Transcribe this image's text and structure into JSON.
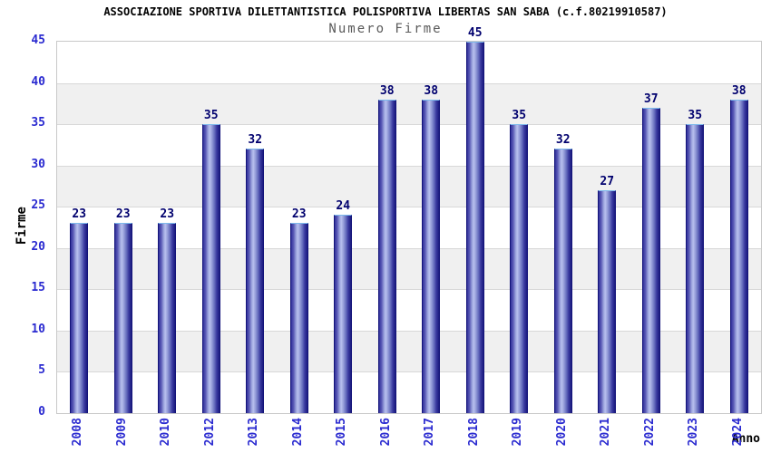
{
  "chart_data": {
    "type": "bar",
    "title": "ASSOCIAZIONE SPORTIVA DILETTANTISTICA POLISPORTIVA LIBERTAS SAN SABA (c.f.80219910587)",
    "subtitle": "Numero Firme",
    "xlabel": "Anno",
    "ylabel": "Firme",
    "categories": [
      "2008",
      "2009",
      "2010",
      "2012",
      "2013",
      "2014",
      "2015",
      "2016",
      "2017",
      "2018",
      "2019",
      "2020",
      "2021",
      "2022",
      "2023",
      "2024"
    ],
    "values": [
      23,
      23,
      23,
      35,
      32,
      23,
      24,
      38,
      38,
      45,
      35,
      32,
      27,
      37,
      35,
      38
    ],
    "ylim": [
      0,
      45
    ],
    "ytick_step": 5,
    "yticks": [
      0,
      5,
      10,
      15,
      20,
      25,
      30,
      35,
      40,
      45
    ],
    "grid": true,
    "legend_position": "none",
    "colors": {
      "background": "#ffffff",
      "band_white": "#ffffff",
      "band_gray": "#f0f0f0",
      "grid_line": "#d8d8d8",
      "plot_border": "#c8c8c8",
      "bar_border": "#14147a",
      "bar_top_edge": "#7cb9ec",
      "bar_gradient": [
        "#31319a",
        "#5a5ab6",
        "#9aa2dc",
        "#b8c0ee",
        "#9aa2dc",
        "#6a72c0",
        "#3a3aa0",
        "#1a1a7e"
      ],
      "bar_gradient_stops": [
        0,
        15,
        30,
        40,
        52,
        68,
        83,
        100
      ],
      "tick_label": "#2a2ad0",
      "value_label": "#00006e",
      "title": "#000000",
      "subtitle": "#5a5a5a"
    }
  }
}
